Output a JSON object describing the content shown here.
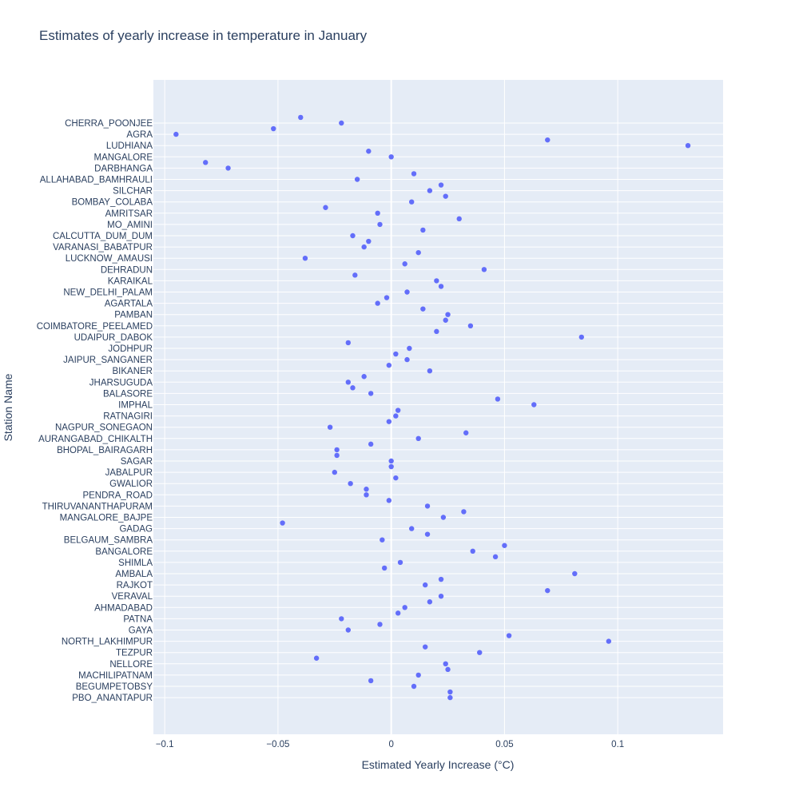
{
  "chart_data": {
    "type": "scatter",
    "title": "Estimates of yearly increase in temperature in January",
    "xlabel": "Estimated Yearly Increase (°C)",
    "ylabel": "Station Name",
    "xlim": [
      -0.105,
      0.1465
    ],
    "xticks": [
      -0.1,
      -0.05,
      0,
      0.05,
      0.1
    ],
    "xtick_labels": [
      "−0.1",
      "−0.05",
      "0",
      "0.05",
      "0.1"
    ],
    "grid": true,
    "legend": "none",
    "marker_color": "#636efa",
    "plot_bgcolor": "#e5ecf6",
    "text_color": "#2a3f5f",
    "stations": [
      "CHERRA_POONJEE",
      "AGRA",
      "LUDHIANA",
      "MANGALORE",
      "DARBHANGA",
      "ALLAHABAD_BAMHRAULI",
      "SILCHAR",
      "BOMBAY_COLABA",
      "AMRITSAR",
      "MO_AMINI",
      "CALCUTTA_DUM_DUM",
      "VARANASI_BABATPUR",
      "LUCKNOW_AMAUSI",
      "DEHRADUN",
      "KARAIKAL",
      "NEW_DELHI_PALAM",
      "AGARTALA",
      "PAMBAN",
      "COIMBATORE_PEELAMED",
      "UDAIPUR_DABOK",
      "JODHPUR",
      "JAIPUR_SANGANER",
      "BIKANER",
      "JHARSUGUDA",
      "BALASORE",
      "IMPHAL",
      "RATNAGIRI",
      "NAGPUR_SONEGAON",
      "AURANGABAD_CHIKALTH",
      "BHOPAL_BAIRAGARH",
      "SAGAR",
      "JABALPUR",
      "GWALIOR",
      "PENDRA_ROAD",
      "THIRUVANANTHAPURAM",
      "MANGALORE_BAJPE",
      "GADAG",
      "BELGAUM_SAMBRA",
      "BANGALORE",
      "SHIMLA",
      "AMBALA",
      "RAJKOT",
      "VERAVAL",
      "AHMADABAD",
      "PATNA",
      "GAYA",
      "NORTH_LAKHIMPUR",
      "TEZPUR",
      "NELLORE",
      "MACHILIPATNAM",
      "BEGUMPETOBSY",
      "PBO_ANANTAPUR"
    ],
    "points": [
      {
        "y": "CHERRA_POONJEE",
        "x": -0.04,
        "offset": -1
      },
      {
        "y": "CHERRA_POONJEE",
        "x": -0.022,
        "offset": 0
      },
      {
        "y": "AGRA",
        "x": -0.052,
        "offset": -1
      },
      {
        "y": "AGRA",
        "x": -0.095,
        "offset": 0
      },
      {
        "y": "LUDHIANA",
        "x": 0.069,
        "offset": -1
      },
      {
        "y": "LUDHIANA",
        "x": 0.131,
        "offset": 0
      },
      {
        "y": "MANGALORE",
        "x": -0.01,
        "offset": -1
      },
      {
        "y": "MANGALORE",
        "x": 0.0,
        "offset": 0
      },
      {
        "y": "DARBHANGA",
        "x": -0.082,
        "offset": -1
      },
      {
        "y": "DARBHANGA",
        "x": -0.072,
        "offset": 0
      },
      {
        "y": "ALLAHABAD_BAMHRAULI",
        "x": 0.01,
        "offset": -1
      },
      {
        "y": "ALLAHABAD_BAMHRAULI",
        "x": -0.015,
        "offset": 0
      },
      {
        "y": "SILCHAR",
        "x": 0.022,
        "offset": -1
      },
      {
        "y": "SILCHAR",
        "x": 0.017,
        "offset": 0
      },
      {
        "y": "BOMBAY_COLABA",
        "x": 0.024,
        "offset": -1
      },
      {
        "y": "BOMBAY_COLABA",
        "x": 0.009,
        "offset": 0
      },
      {
        "y": "AMRITSAR",
        "x": -0.029,
        "offset": -1
      },
      {
        "y": "AMRITSAR",
        "x": -0.006,
        "offset": 0
      },
      {
        "y": "MO_AMINI",
        "x": 0.03,
        "offset": -1
      },
      {
        "y": "MO_AMINI",
        "x": -0.005,
        "offset": 0
      },
      {
        "y": "CALCUTTA_DUM_DUM",
        "x": 0.014,
        "offset": -1
      },
      {
        "y": "CALCUTTA_DUM_DUM",
        "x": -0.017,
        "offset": 0
      },
      {
        "y": "VARANASI_BABATPUR",
        "x": -0.01,
        "offset": -1
      },
      {
        "y": "VARANASI_BABATPUR",
        "x": -0.012,
        "offset": 0
      },
      {
        "y": "LUCKNOW_AMAUSI",
        "x": 0.012,
        "offset": -1
      },
      {
        "y": "LUCKNOW_AMAUSI",
        "x": -0.038,
        "offset": 0
      },
      {
        "y": "DEHRADUN",
        "x": 0.006,
        "offset": -1
      },
      {
        "y": "DEHRADUN",
        "x": 0.041,
        "offset": 0
      },
      {
        "y": "KARAIKAL",
        "x": -0.016,
        "offset": -1
      },
      {
        "y": "KARAIKAL",
        "x": 0.02,
        "offset": 0
      },
      {
        "y": "NEW_DELHI_PALAM",
        "x": 0.022,
        "offset": -1
      },
      {
        "y": "NEW_DELHI_PALAM",
        "x": 0.007,
        "offset": 0
      },
      {
        "y": "AGARTALA",
        "x": -0.002,
        "offset": -1
      },
      {
        "y": "AGARTALA",
        "x": -0.006,
        "offset": 0
      },
      {
        "y": "PAMBAN",
        "x": 0.014,
        "offset": -1
      },
      {
        "y": "PAMBAN",
        "x": 0.025,
        "offset": 0
      },
      {
        "y": "COIMBATORE_PEELAMED",
        "x": 0.024,
        "offset": -1
      },
      {
        "y": "COIMBATORE_PEELAMED",
        "x": 0.035,
        "offset": 0
      },
      {
        "y": "UDAIPUR_DABOK",
        "x": 0.02,
        "offset": -1
      },
      {
        "y": "UDAIPUR_DABOK",
        "x": 0.084,
        "offset": 0
      },
      {
        "y": "JODHPUR",
        "x": -0.019,
        "offset": -1
      },
      {
        "y": "JODHPUR",
        "x": 0.008,
        "offset": 0
      },
      {
        "y": "JAIPUR_SANGANER",
        "x": 0.002,
        "offset": -1
      },
      {
        "y": "JAIPUR_SANGANER",
        "x": 0.007,
        "offset": 0
      },
      {
        "y": "BIKANER",
        "x": -0.001,
        "offset": -1
      },
      {
        "y": "BIKANER",
        "x": 0.017,
        "offset": 0
      },
      {
        "y": "JHARSUGUDA",
        "x": -0.012,
        "offset": -1
      },
      {
        "y": "JHARSUGUDA",
        "x": -0.019,
        "offset": 0
      },
      {
        "y": "BALASORE",
        "x": -0.017,
        "offset": -1
      },
      {
        "y": "BALASORE",
        "x": -0.009,
        "offset": 0
      },
      {
        "y": "IMPHAL",
        "x": 0.047,
        "offset": -1
      },
      {
        "y": "IMPHAL",
        "x": 0.063,
        "offset": 0
      },
      {
        "y": "RATNAGIRI",
        "x": 0.003,
        "offset": -1
      },
      {
        "y": "RATNAGIRI",
        "x": 0.002,
        "offset": 0
      },
      {
        "y": "NAGPUR_SONEGAON",
        "x": -0.001,
        "offset": -1
      },
      {
        "y": "NAGPUR_SONEGAON",
        "x": -0.027,
        "offset": 0
      },
      {
        "y": "AURANGABAD_CHIKALTH",
        "x": 0.033,
        "offset": -1
      },
      {
        "y": "AURANGABAD_CHIKALTH",
        "x": 0.012,
        "offset": 0
      },
      {
        "y": "BHOPAL_BAIRAGARH",
        "x": -0.009,
        "offset": -1
      },
      {
        "y": "BHOPAL_BAIRAGARH",
        "x": -0.024,
        "offset": 0
      },
      {
        "y": "SAGAR",
        "x": -0.024,
        "offset": -1
      },
      {
        "y": "SAGAR",
        "x": 0.0,
        "offset": 0
      },
      {
        "y": "JABALPUR",
        "x": 0.0,
        "offset": -1
      },
      {
        "y": "JABALPUR",
        "x": -0.025,
        "offset": 0
      },
      {
        "y": "GWALIOR",
        "x": 0.002,
        "offset": -1
      },
      {
        "y": "GWALIOR",
        "x": -0.018,
        "offset": 0
      },
      {
        "y": "PENDRA_ROAD",
        "x": -0.011,
        "offset": -1
      },
      {
        "y": "PENDRA_ROAD",
        "x": -0.011,
        "offset": 0
      },
      {
        "y": "THIRUVANANTHAPURAM",
        "x": -0.001,
        "offset": -1
      },
      {
        "y": "THIRUVANANTHAPURAM",
        "x": 0.016,
        "offset": 0
      },
      {
        "y": "MANGALORE_BAJPE",
        "x": 0.032,
        "offset": -1
      },
      {
        "y": "MANGALORE_BAJPE",
        "x": 0.023,
        "offset": 0
      },
      {
        "y": "GADAG",
        "x": -0.048,
        "offset": -1
      },
      {
        "y": "GADAG",
        "x": 0.009,
        "offset": 0
      },
      {
        "y": "BELGAUM_SAMBRA",
        "x": 0.016,
        "offset": -1
      },
      {
        "y": "BELGAUM_SAMBRA",
        "x": -0.004,
        "offset": 0
      },
      {
        "y": "BANGALORE",
        "x": 0.05,
        "offset": -1
      },
      {
        "y": "BANGALORE",
        "x": 0.036,
        "offset": 0
      },
      {
        "y": "SHIMLA",
        "x": 0.046,
        "offset": -1
      },
      {
        "y": "SHIMLA",
        "x": 0.004,
        "offset": 0
      },
      {
        "y": "AMBALA",
        "x": -0.003,
        "offset": -1
      },
      {
        "y": "AMBALA",
        "x": 0.081,
        "offset": 0
      },
      {
        "y": "RAJKOT",
        "x": 0.022,
        "offset": -1
      },
      {
        "y": "RAJKOT",
        "x": 0.015,
        "offset": 0
      },
      {
        "y": "VERAVAL",
        "x": 0.069,
        "offset": -1
      },
      {
        "y": "VERAVAL",
        "x": 0.022,
        "offset": 0
      },
      {
        "y": "AHMADABAD",
        "x": 0.017,
        "offset": -1
      },
      {
        "y": "AHMADABAD",
        "x": 0.006,
        "offset": 0
      },
      {
        "y": "PATNA",
        "x": 0.003,
        "offset": -1
      },
      {
        "y": "PATNA",
        "x": -0.022,
        "offset": 0
      },
      {
        "y": "GAYA",
        "x": -0.005,
        "offset": -1
      },
      {
        "y": "GAYA",
        "x": -0.019,
        "offset": 0
      },
      {
        "y": "NORTH_LAKHIMPUR",
        "x": 0.052,
        "offset": -1
      },
      {
        "y": "NORTH_LAKHIMPUR",
        "x": 0.096,
        "offset": 0
      },
      {
        "y": "TEZPUR",
        "x": 0.015,
        "offset": -1
      },
      {
        "y": "TEZPUR",
        "x": 0.039,
        "offset": 0
      },
      {
        "y": "NELLORE",
        "x": -0.033,
        "offset": -1
      },
      {
        "y": "NELLORE",
        "x": 0.024,
        "offset": 0
      },
      {
        "y": "MACHILIPATNAM",
        "x": 0.025,
        "offset": -1
      },
      {
        "y": "MACHILIPATNAM",
        "x": 0.012,
        "offset": 0
      },
      {
        "y": "BEGUMPETOBSY",
        "x": -0.009,
        "offset": -1
      },
      {
        "y": "BEGUMPETOBSY",
        "x": 0.01,
        "offset": 0
      },
      {
        "y": "PBO_ANANTAPUR",
        "x": 0.026,
        "offset": -1
      },
      {
        "y": "PBO_ANANTAPUR",
        "x": 0.026,
        "offset": 0
      }
    ]
  }
}
